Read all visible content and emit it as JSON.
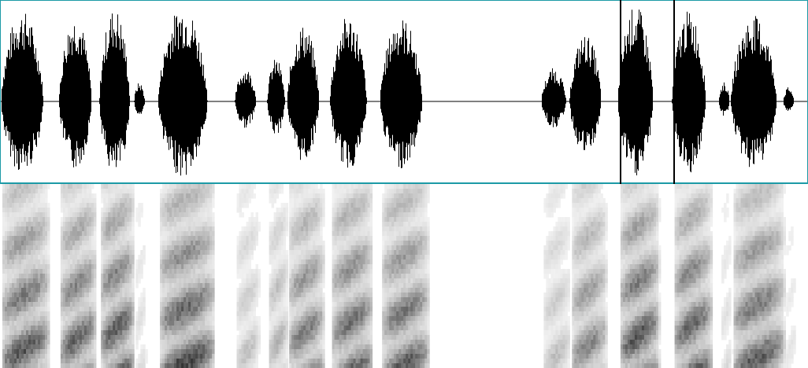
{
  "view": {
    "waveform_color": "#000000",
    "background_color": "#ffffff",
    "border_color": "#1c9aa6",
    "spectrogram_dark": "#1a1a1a",
    "spectrogram_light": "#ffffff"
  },
  "selection": {
    "start_fraction": 0.767,
    "end_fraction": 0.833
  },
  "segments": [
    {
      "start": 0.0,
      "end": 0.06,
      "level": 0.95
    },
    {
      "start": 0.072,
      "end": 0.118,
      "level": 0.9
    },
    {
      "start": 0.122,
      "end": 0.165,
      "level": 0.98
    },
    {
      "start": 0.165,
      "end": 0.18,
      "level": 0.2
    },
    {
      "start": 0.195,
      "end": 0.265,
      "level": 1.0
    },
    {
      "start": 0.29,
      "end": 0.32,
      "level": 0.35
    },
    {
      "start": 0.33,
      "end": 0.355,
      "level": 0.45
    },
    {
      "start": 0.355,
      "end": 0.4,
      "level": 0.8
    },
    {
      "start": 0.408,
      "end": 0.46,
      "level": 0.9
    },
    {
      "start": 0.47,
      "end": 0.53,
      "level": 0.88
    },
    {
      "start": 0.67,
      "end": 0.705,
      "level": 0.35
    },
    {
      "start": 0.705,
      "end": 0.75,
      "level": 0.7
    },
    {
      "start": 0.765,
      "end": 0.815,
      "level": 1.0
    },
    {
      "start": 0.832,
      "end": 0.88,
      "level": 0.95
    },
    {
      "start": 0.89,
      "end": 0.905,
      "level": 0.2
    },
    {
      "start": 0.905,
      "end": 0.97,
      "level": 0.9
    },
    {
      "start": 0.97,
      "end": 0.985,
      "level": 0.15
    }
  ]
}
